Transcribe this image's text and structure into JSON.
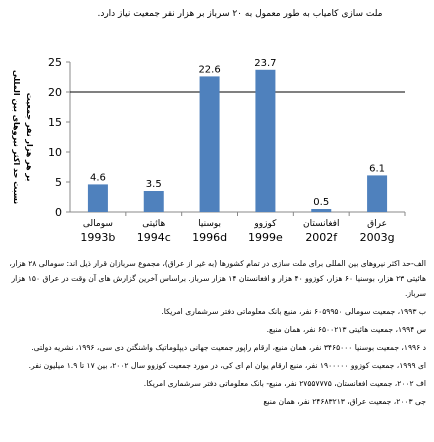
{
  "chart_data": {
    "type": "bar",
    "title": "ملت سازی کامیاب به طور معمول به ۲۰ سرباز بر هزار نفر جمعیت نیاز دارد.",
    "ylabel": [
      "نسبت حد اکثر نیروهای بین المللی",
      "بر هر هزار نفر جمعیت"
    ],
    "categories": [
      "سومالی",
      "هائیتی",
      "بوسنیا",
      "کوزوو",
      "افغانستان",
      "عراق"
    ],
    "category_years": [
      "1993b",
      "1994c",
      "1996d",
      "1999e",
      "2002f",
      "2003g"
    ],
    "values": [
      4.6,
      3.5,
      22.6,
      23.7,
      0.5,
      6.1
    ],
    "color": "#4f81bd",
    "ylim": [
      0,
      25
    ],
    "yticks": [
      0,
      5,
      10,
      15,
      20,
      25
    ],
    "reference_line": 20,
    "grid": false
  },
  "notes": [
    "الف-حد اکثر نیروهای بین المللی برای ملت سازی در تمام کشورها (به غیر از عراق)، مجموع سربازان قرار ذیل اند: سومالی ۲۸ هزار، هائیتی ۲۳ هزار، بوسنیا ۶۰ هزار، کوزوو ۴۰ هزار و افغانستان ۱۴ هزار سرباز. براساس آخرین گزارش های آن وقت در عراق ۱۵۰ هزار سرباز.",
    "ب ۱۹۹۳، جمعیت سومالی ۶۰۵۹۹۵۰ نفر، منبع بانک معلوماتی دفتر سرشماری امریکا.",
    "س ۱۹۹۴، جمعیت هائیتی ۶۵۰۰۲۱۳ نفر، همان منبع.",
    "د ۱۹۹۶، جمعیت بوسنیا ۳۴۶۵۰۰۰ نفر، همان منبع، ارقام راپور جمعیت جهانی دیپلوماتیک واشنگتن دی سی، ۱۹۹۶، نشریه دولتی.",
    "ای ۱۹۹۹، جمعیت کوزوو ۱۹۰۰۰۰۰ نفر، منبع ارقام یوان ام ای کی، در مورد جمعیت کوزوو سال ۲۰۰۲، بین ۱۷ تا ۱.۹ میلیون نفر.",
    "اف ۲۰۰۲، جمعیت افغانستان، ۲۷۵۵۷۷۷۵ نفر، منبع- بانک معلوماتی دفتر سرشماری امریکا.",
    "جی ۲۰۰۳، جمعیت عراق، ۲۴۶۸۳۲۱۳ نفر، همان منبع"
  ]
}
